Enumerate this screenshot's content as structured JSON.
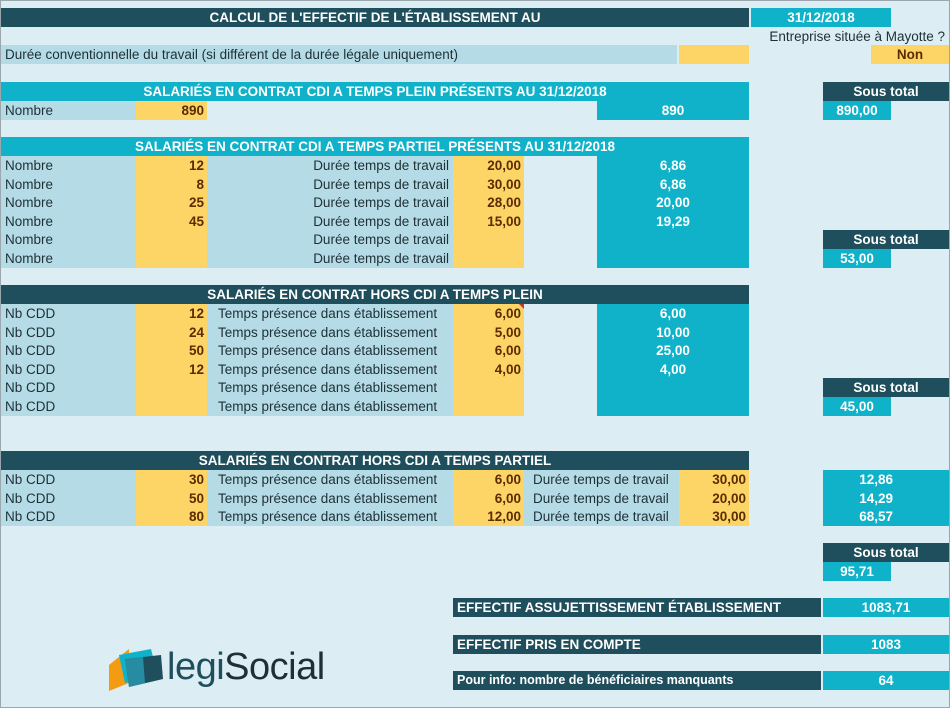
{
  "header": {
    "title": "CALCUL DE L'EFFECTIF DE L'ÉTABLISSEMENT AU",
    "date": "31/12/2018",
    "mayotte_question": "Entreprise située à Mayotte ?",
    "mayotte_answer": "Non",
    "duree_label": "Durée conventionnelle du travail (si différent de la durée légale uniquement)",
    "duree_value": ""
  },
  "cdi_plein": {
    "title": "SALARIÉS EN CONTRAT CDI A TEMPS PLEIN PRÉSENTS AU 31/12/2018",
    "row_label": "Nombre",
    "nombre": "890",
    "result": "890",
    "sous_total_label": "Sous total",
    "sous_total": "890,00"
  },
  "cdi_partiel": {
    "title": "SALARIÉS EN CONTRAT CDI A TEMPS PARTIEL PRÉSENTS AU 31/12/2018",
    "row_label": "Nombre",
    "duree_label": "Durée temps de travail",
    "rows": [
      {
        "nombre": "12",
        "duree": "20,00",
        "result": "6,86"
      },
      {
        "nombre": "8",
        "duree": "30,00",
        "result": "6,86"
      },
      {
        "nombre": "25",
        "duree": "28,00",
        "result": "20,00"
      },
      {
        "nombre": "45",
        "duree": "15,00",
        "result": "19,29"
      },
      {
        "nombre": "",
        "duree": "",
        "result": ""
      },
      {
        "nombre": "",
        "duree": "",
        "result": ""
      }
    ],
    "sous_total_label": "Sous total",
    "sous_total": "53,00"
  },
  "hors_cdi_plein": {
    "title": "SALARIÉS EN CONTRAT HORS CDI A TEMPS PLEIN",
    "row_label": "Nb CDD",
    "presence_label": "Temps présence dans établissement",
    "rows": [
      {
        "nb": "12",
        "presence": "6,00",
        "result": "6,00"
      },
      {
        "nb": "24",
        "presence": "5,00",
        "result": "10,00"
      },
      {
        "nb": "50",
        "presence": "6,00",
        "result": "25,00"
      },
      {
        "nb": "12",
        "presence": "4,00",
        "result": "4,00"
      },
      {
        "nb": "",
        "presence": "",
        "result": ""
      },
      {
        "nb": "",
        "presence": "",
        "result": ""
      }
    ],
    "sous_total_label": "Sous total",
    "sous_total": "45,00"
  },
  "hors_cdi_partiel": {
    "title": "SALARIÉS EN CONTRAT HORS CDI A TEMPS PARTIEL",
    "row_label": "Nb CDD",
    "presence_label": "Temps présence dans établissement",
    "duree_label": "Durée temps de travail",
    "rows": [
      {
        "nb": "30",
        "presence": "6,00",
        "duree": "30,00",
        "result": "12,86"
      },
      {
        "nb": "50",
        "presence": "6,00",
        "duree": "20,00",
        "result": "14,29"
      },
      {
        "nb": "80",
        "presence": "12,00",
        "duree": "30,00",
        "result": "68,57"
      }
    ],
    "sous_total_label": "Sous total",
    "sous_total": "95,71"
  },
  "totals": {
    "assujettissement_label": "EFFECTIF ASSUJETTISSEMENT ÉTABLISSEMENT",
    "assujettissement": "1083,71",
    "pris_en_compte_label": "EFFECTIF PRIS EN COMPTE",
    "pris_en_compte": "1083",
    "manquants_label": "Pour info: nombre de bénéficiaires manquants",
    "manquants": "64"
  },
  "logo": {
    "text_part1": "legi",
    "text_part2": "Social"
  },
  "colors": {
    "dark": "#1f4e5c",
    "turquoise": "#0fb2c9",
    "input_yellow": "#fdd567",
    "light_blue": "#b5dce6",
    "sheet_bg": "#dcedf4",
    "logo_orange": "#f39c12"
  }
}
